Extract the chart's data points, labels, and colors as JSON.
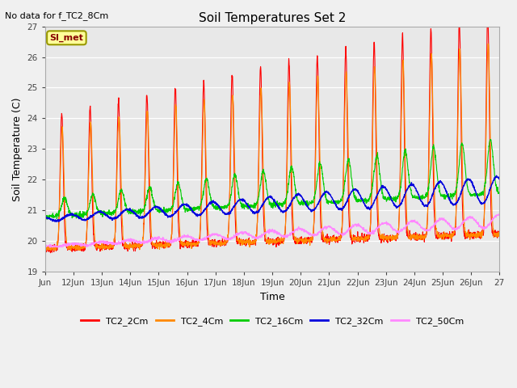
{
  "title": "Soil Temperatures Set 2",
  "subtitle": "No data for f_TC2_8Cm",
  "xlabel": "Time",
  "ylabel": "Soil Temperature (C)",
  "ylim": [
    19.0,
    27.0
  ],
  "yticks": [
    19.0,
    20.0,
    21.0,
    22.0,
    23.0,
    24.0,
    25.0,
    26.0,
    27.0
  ],
  "xtick_labels": [
    "Jun",
    "12Jun",
    "13Jun",
    "14Jun",
    "15Jun",
    "16Jun",
    "17Jun",
    "18Jun",
    "19Jun",
    "20Jun",
    "21Jun",
    "22Jun",
    "23Jun",
    "24Jun",
    "25Jun",
    "26Jun",
    "27"
  ],
  "series": {
    "TC2_2Cm": {
      "color": "#ff0000",
      "lw": 0.8
    },
    "TC2_4Cm": {
      "color": "#ff8800",
      "lw": 0.8
    },
    "TC2_16Cm": {
      "color": "#00cc00",
      "lw": 0.8
    },
    "TC2_32Cm": {
      "color": "#0000dd",
      "lw": 1.0
    },
    "TC2_50Cm": {
      "color": "#ff88ff",
      "lw": 0.8
    }
  },
  "annotation_box": {
    "text": "SI_met",
    "facecolor": "#ffff99",
    "edgecolor": "#999900",
    "textcolor": "#880000"
  },
  "fig_bg": "#f0f0f0",
  "plot_bg": "#e8e8e8",
  "n_days": 16,
  "pts_per_day": 144
}
